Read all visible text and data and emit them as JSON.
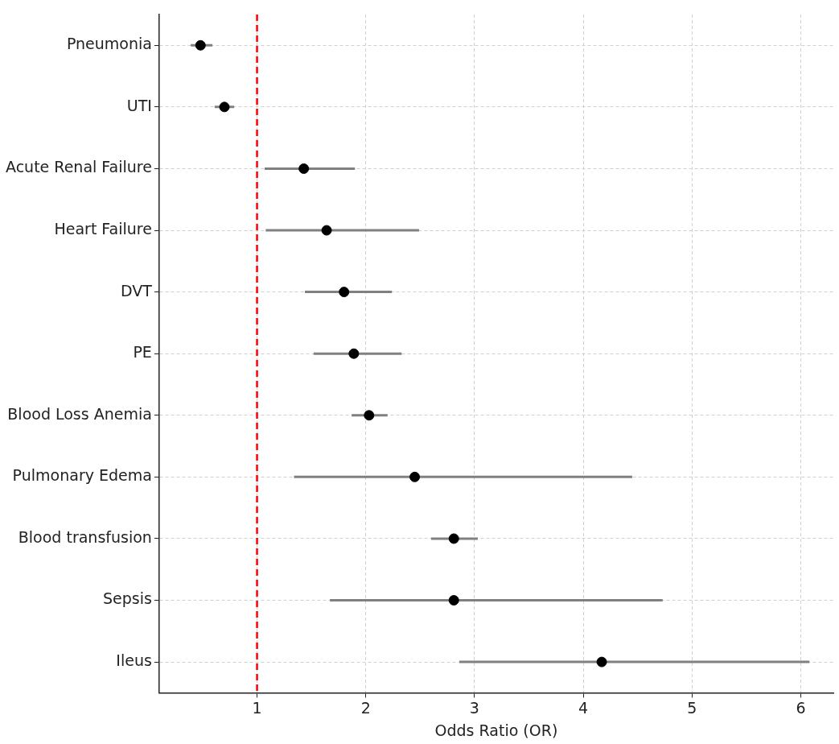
{
  "chart_data": {
    "type": "scatter",
    "orientation": "horizontal",
    "xlabel": "Odds Ratio (OR)",
    "categories": [
      "Pneumonia",
      "UTI",
      "Acute Renal Failure",
      "Heart Failure",
      "DVT",
      "PE",
      "Blood Loss Anemia",
      "Pulmonary Edema",
      "Blood transfusion",
      "Sepsis",
      "Ileus"
    ],
    "color": "#000000",
    "values": [
      0.48,
      0.7,
      1.43,
      1.64,
      1.8,
      1.89,
      2.03,
      2.45,
      2.81,
      2.81,
      4.17
    ],
    "errors": [
      [
        0.39,
        0.59
      ],
      [
        0.61,
        0.79
      ],
      [
        1.07,
        1.9
      ],
      [
        1.08,
        2.49
      ],
      [
        1.44,
        2.24
      ],
      [
        1.52,
        2.33
      ],
      [
        1.87,
        2.2
      ],
      [
        1.34,
        4.45
      ],
      [
        2.6,
        3.03
      ],
      [
        1.67,
        4.73
      ],
      [
        2.86,
        6.08
      ]
    ],
    "xlim": [
      0.1,
      6.3
    ],
    "xticks": [
      1,
      2,
      3,
      4,
      5,
      6
    ],
    "grid": true,
    "legend": false,
    "marker": "circle",
    "ref_lines": [
      {
        "axis": "x",
        "value": 1,
        "color": "#ff0000",
        "line_style": "dashed"
      }
    ]
  }
}
